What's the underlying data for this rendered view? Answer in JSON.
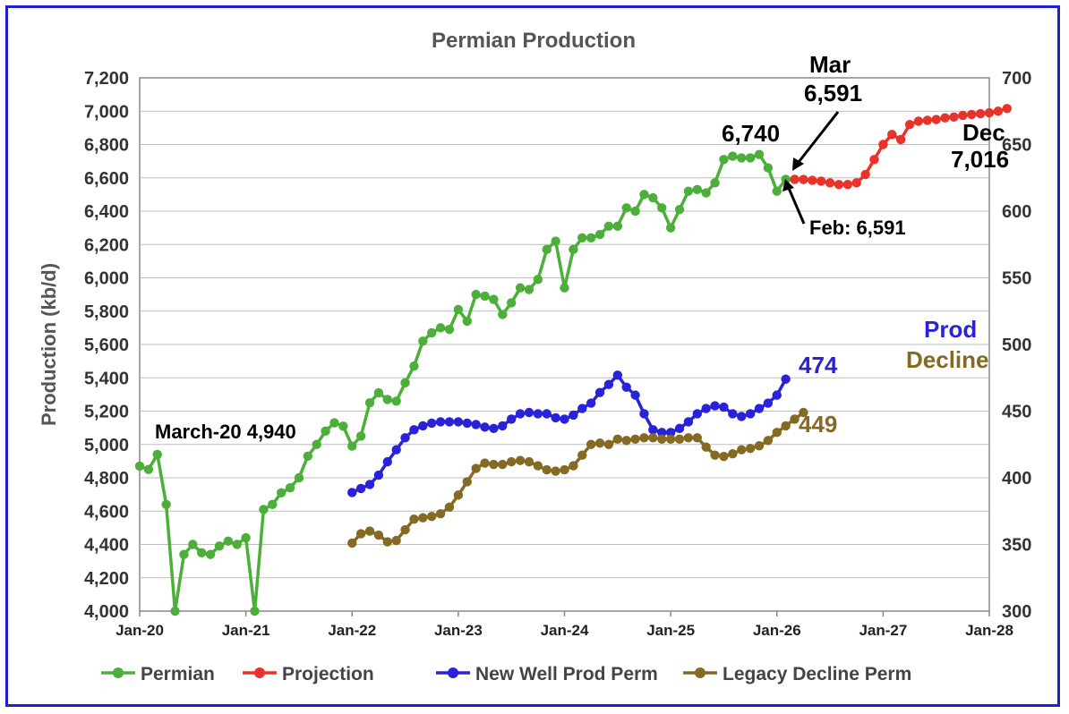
{
  "chart_data": {
    "type": "line",
    "title": "Permian Production",
    "ylabel": "Production (kb/d)",
    "ylim": [
      4000,
      7200
    ],
    "y2lim": [
      300,
      700
    ],
    "yticks": [
      "4,000",
      "4,200",
      "4,400",
      "4,600",
      "4,800",
      "5,000",
      "5,200",
      "5,400",
      "5,600",
      "5,800",
      "6,000",
      "6,200",
      "6,400",
      "6,600",
      "6,800",
      "7,000",
      "7,200"
    ],
    "y2ticks": [
      "300",
      "350",
      "400",
      "450",
      "500",
      "550",
      "600",
      "650",
      "700"
    ],
    "xticks": [
      "Jan-20",
      "Jan-21",
      "Jan-22",
      "Jan-23",
      "Jan-24",
      "Jan-25",
      "Jan-26",
      "Jan-27",
      "Jan-28"
    ],
    "series": [
      {
        "name": "Permian",
        "color": "#4caf3a",
        "axis": "left",
        "start_month": 0,
        "values": [
          4870,
          4850,
          4940,
          4640,
          3990,
          4340,
          4400,
          4350,
          4340,
          4390,
          4420,
          4400,
          4440,
          3860,
          4610,
          4640,
          4710,
          4740,
          4800,
          4930,
          5000,
          5080,
          5130,
          5110,
          4990,
          5050,
          5250,
          5310,
          5270,
          5260,
          5370,
          5470,
          5620,
          5670,
          5700,
          5690,
          5810,
          5740,
          5900,
          5890,
          5870,
          5780,
          5850,
          5940,
          5930,
          5990,
          6170,
          6220,
          5940,
          6170,
          6240,
          6240,
          6260,
          6310,
          6310,
          6420,
          6400,
          6500,
          6480,
          6420,
          6300,
          6410,
          6520,
          6530,
          6510,
          6570,
          6710,
          6730,
          6720,
          6720,
          6740,
          6660,
          6520,
          6591
        ]
      },
      {
        "name": "Projection",
        "color": "#e8322a",
        "axis": "left",
        "start_month": 74,
        "values": [
          6591,
          6590,
          6585,
          6580,
          6570,
          6560,
          6560,
          6570,
          6620,
          6710,
          6800,
          6860,
          6830,
          6920,
          6940,
          6945,
          6950,
          6960,
          6965,
          6975,
          6980,
          6985,
          6990,
          7000,
          7016
        ]
      },
      {
        "name": "New Well Prod Perm",
        "color": "#2a22d8",
        "axis": "right",
        "start_month": 24,
        "values": [
          389,
          392,
          395,
          402,
          412,
          421,
          430,
          436,
          439,
          441,
          442,
          442,
          442,
          441,
          440,
          438,
          437,
          439,
          444,
          448,
          449,
          448,
          448,
          445,
          444,
          447,
          452,
          456,
          464,
          470,
          477,
          468,
          462,
          448,
          436,
          434,
          434,
          437,
          442,
          448,
          452,
          454,
          453,
          448,
          446,
          448,
          452,
          456,
          462,
          474
        ]
      },
      {
        "name": "Legacy Decline Perm",
        "color": "#846a22",
        "axis": "right",
        "start_month": 24,
        "values": [
          351,
          358,
          360,
          357,
          352,
          353,
          361,
          369,
          370,
          371,
          373,
          378,
          387,
          397,
          407,
          411,
          410,
          410,
          412,
          413,
          412,
          409,
          406,
          405,
          406,
          409,
          417,
          425,
          426,
          425,
          429,
          428,
          429,
          430,
          430,
          429,
          429,
          429,
          430,
          430,
          423,
          417,
          416,
          418,
          421,
          422,
          424,
          428,
          434,
          439,
          444,
          449
        ]
      }
    ],
    "annotations": {
      "march20": "March-20 4,940",
      "peak": "6,740",
      "mar_label": "Mar",
      "mar_value": "6,591",
      "feb": "Feb: 6,591",
      "dec_label": "Dec",
      "dec_value": "7,016",
      "prod_label": "Prod",
      "decline_label": "Decline",
      "prod_value": "474",
      "decline_value": "449"
    },
    "legend": [
      "Permian",
      "Projection",
      "New Well Prod Perm",
      "Legacy Decline Perm"
    ],
    "legend_position": "bottom"
  }
}
